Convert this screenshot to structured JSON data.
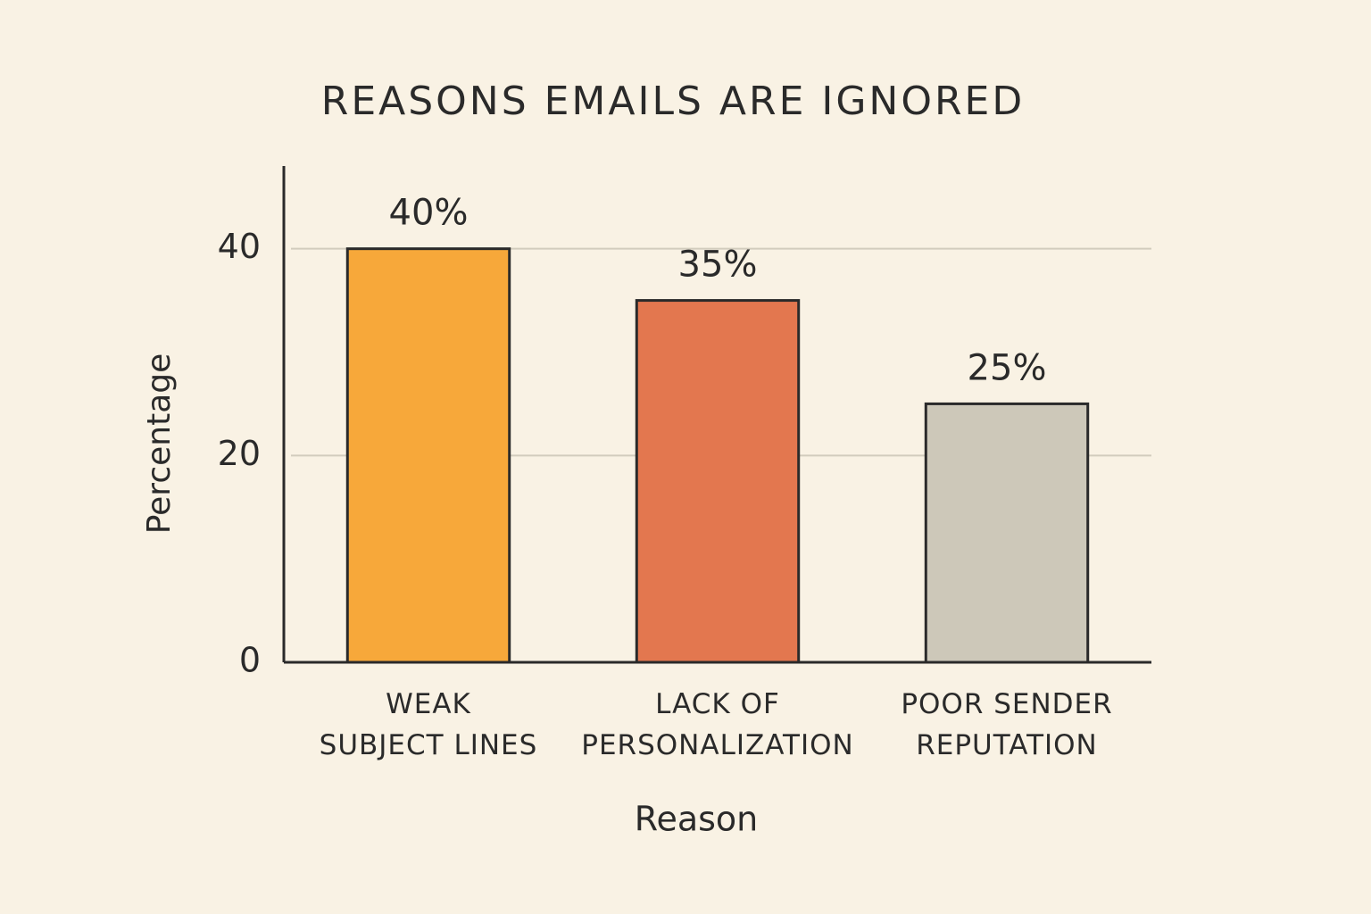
{
  "chart_data": {
    "type": "bar",
    "title": "REASONS EMAILS ARE IGNORED",
    "x_label": "Reason",
    "y_label": "Percentage",
    "categories": [
      "WEAK\nSUBJECT LINES",
      "LACK OF\nPERSONALIZATION",
      "POOR SENDER\nREPUTATION"
    ],
    "values": [
      40,
      35,
      25
    ],
    "value_labels": [
      "40%",
      "35%",
      "25%"
    ],
    "colors": [
      "#f7a83a",
      "#e3774f",
      "#cdc8b9"
    ],
    "ylim": [
      0,
      48
    ],
    "yticks": [
      0,
      20,
      40
    ],
    "grid": true
  }
}
